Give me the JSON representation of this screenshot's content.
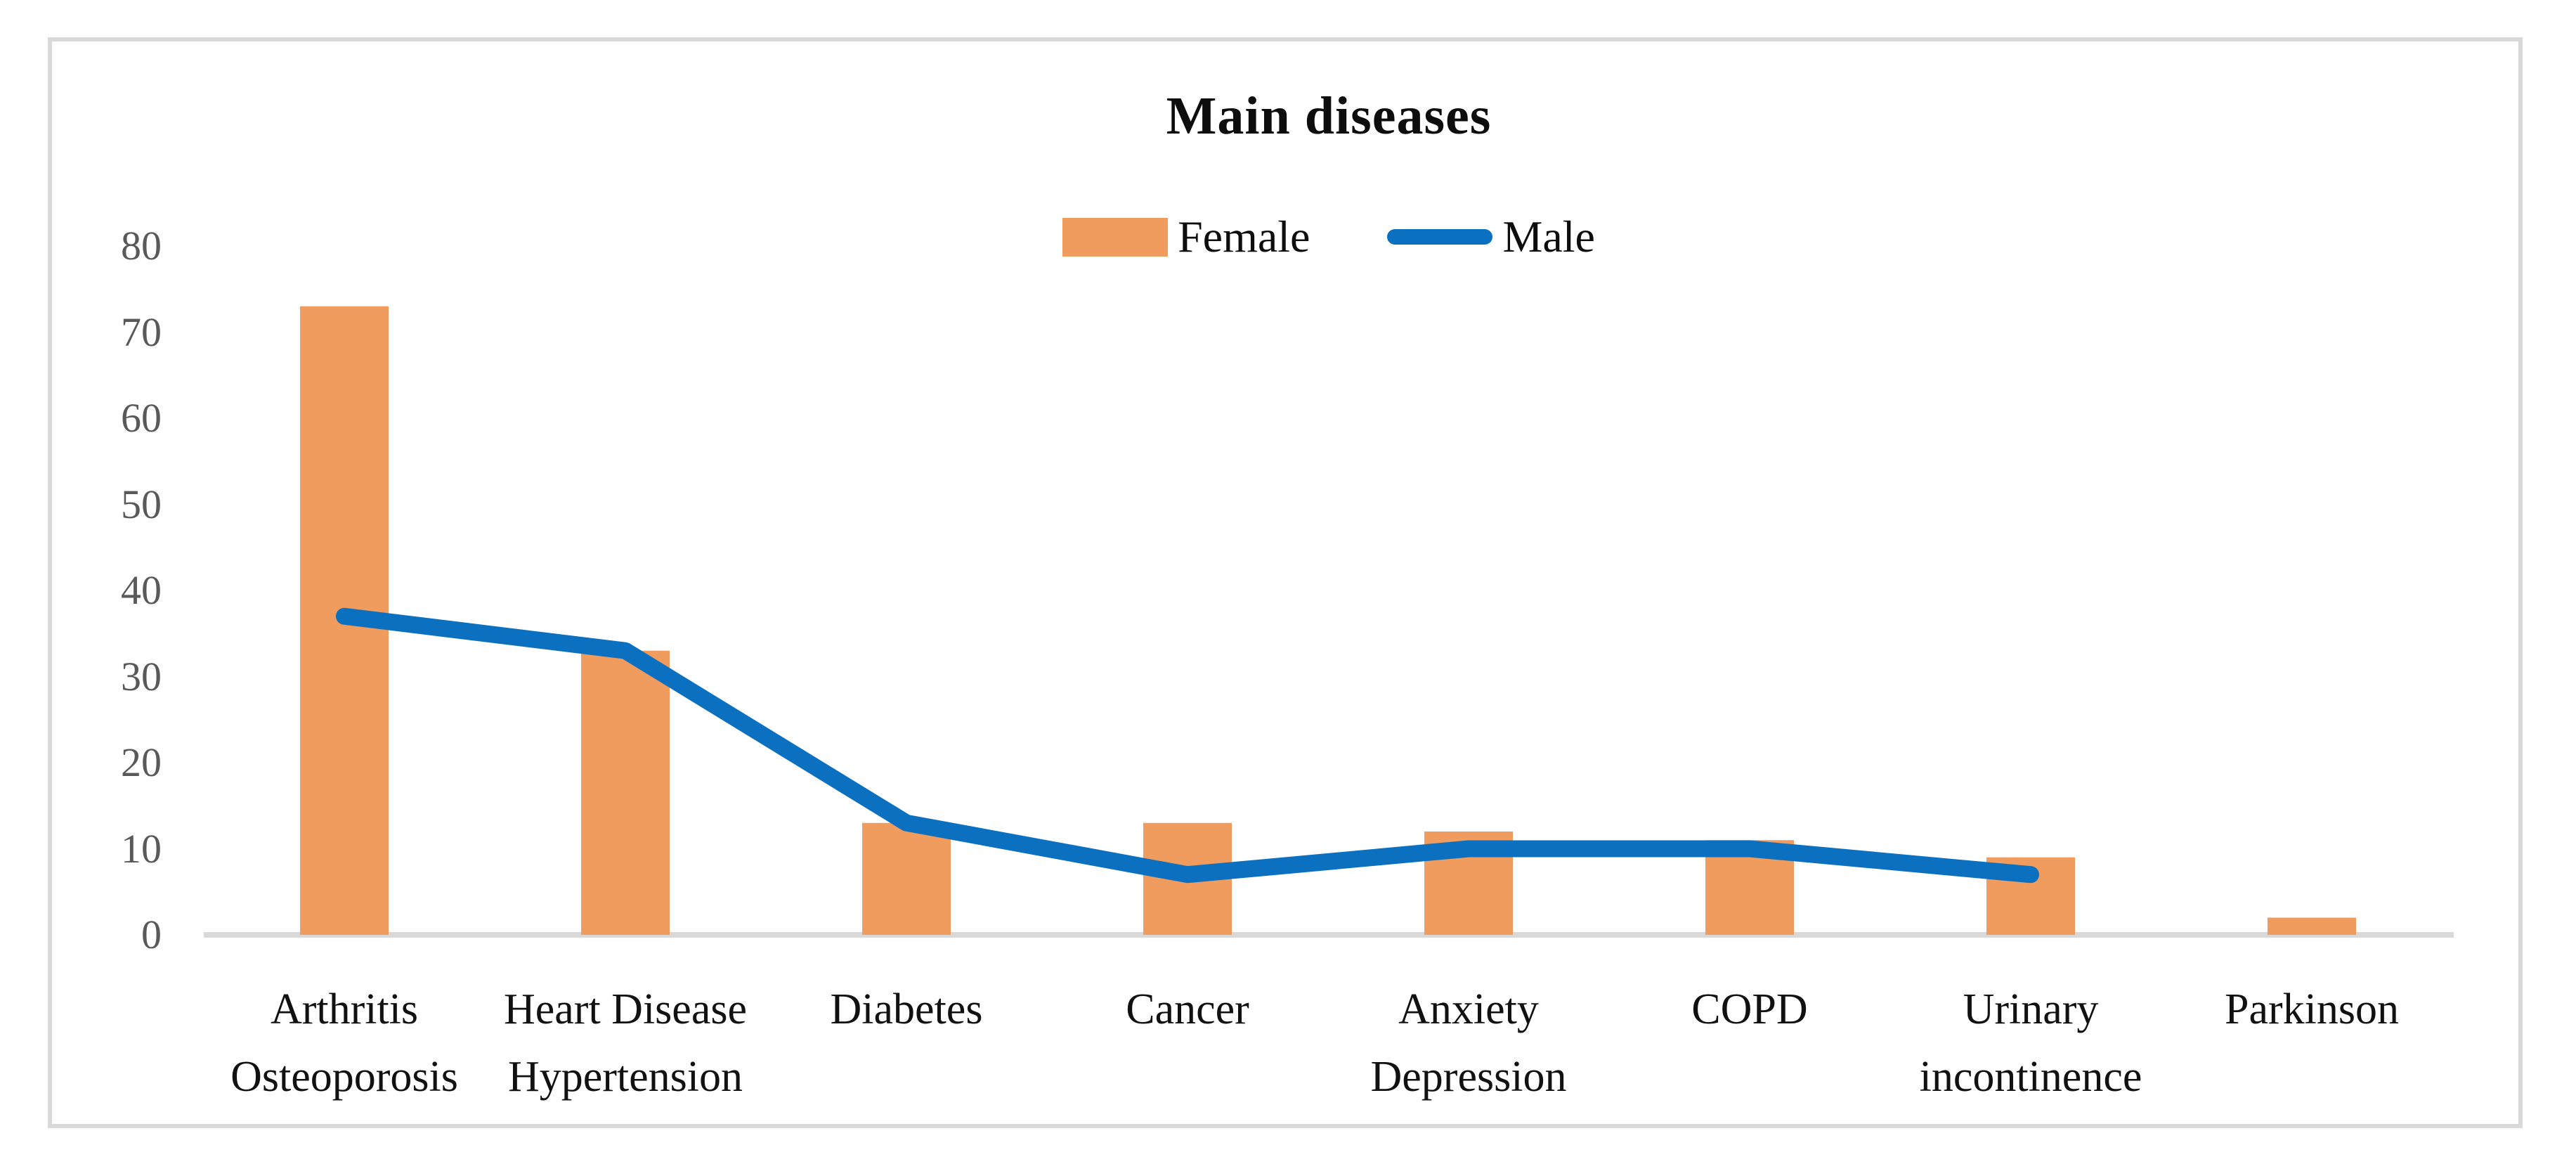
{
  "chart_data": {
    "type": "combo-bar-line",
    "title": "Main diseases",
    "categories": [
      [
        "Arthritis",
        "Osteoporosis"
      ],
      [
        "Heart Disease",
        "Hypertension"
      ],
      [
        "Diabetes"
      ],
      [
        "Cancer"
      ],
      [
        "Anxiety",
        "Depression"
      ],
      [
        "COPD"
      ],
      [
        "Urinary",
        "incontinence"
      ],
      [
        "Parkinson"
      ]
    ],
    "series": [
      {
        "name": "Female",
        "type": "bar",
        "color": "#F09C5E",
        "values": [
          73,
          33,
          13,
          13,
          12,
          11,
          9,
          2
        ]
      },
      {
        "name": "Male",
        "type": "line",
        "color": "#0C70C0",
        "values": [
          37,
          33,
          13,
          7,
          10,
          10,
          7,
          null
        ]
      }
    ],
    "yticks": [
      0,
      10,
      20,
      30,
      40,
      50,
      60,
      70,
      80
    ],
    "ylim": [
      0,
      80
    ],
    "grid": "off",
    "legend_position": "top",
    "colors": {
      "axis_line": "#D9D9D9",
      "tick_label": "#595959",
      "category_label": "#111111",
      "title": "#0d0d0d",
      "chart_border": "#D9D9D9"
    }
  }
}
